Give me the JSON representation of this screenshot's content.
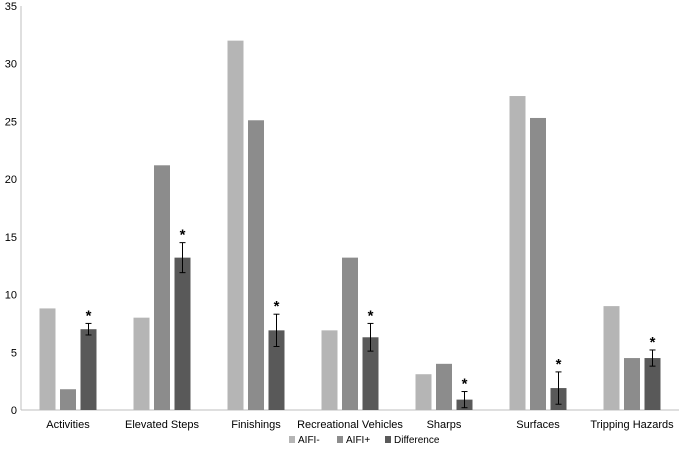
{
  "chart_data": {
    "type": "bar",
    "categories": [
      "Activities",
      "Elevated Steps",
      "Finishings",
      "Recreational Vehicles",
      "Sharps",
      "Surfaces",
      "Tripping Hazards"
    ],
    "series": [
      {
        "name": "AIFI-",
        "color": "#b5b5b5",
        "values": [
          8.8,
          8.0,
          32.0,
          6.9,
          3.1,
          27.2,
          9.0
        ]
      },
      {
        "name": "AIFI+",
        "color": "#8c8c8c",
        "values": [
          1.8,
          21.2,
          25.1,
          13.2,
          4.0,
          25.3,
          4.5
        ]
      },
      {
        "name": "Difference",
        "color": "#595959",
        "values": [
          7.0,
          13.2,
          6.9,
          6.3,
          0.9,
          1.9,
          4.5
        ],
        "error": [
          0.5,
          1.3,
          1.4,
          1.2,
          0.7,
          1.4,
          0.7
        ],
        "significance": [
          "*",
          "*",
          "*",
          "*",
          "*",
          "*",
          "*"
        ]
      }
    ],
    "yticks": [
      "0",
      "5",
      "10",
      "15",
      "20",
      "25",
      "30",
      "35"
    ],
    "ylim": [
      0,
      35
    ],
    "grid": false,
    "legend_position": "bottom-center",
    "title": "",
    "xlabel": "",
    "ylabel": ""
  }
}
